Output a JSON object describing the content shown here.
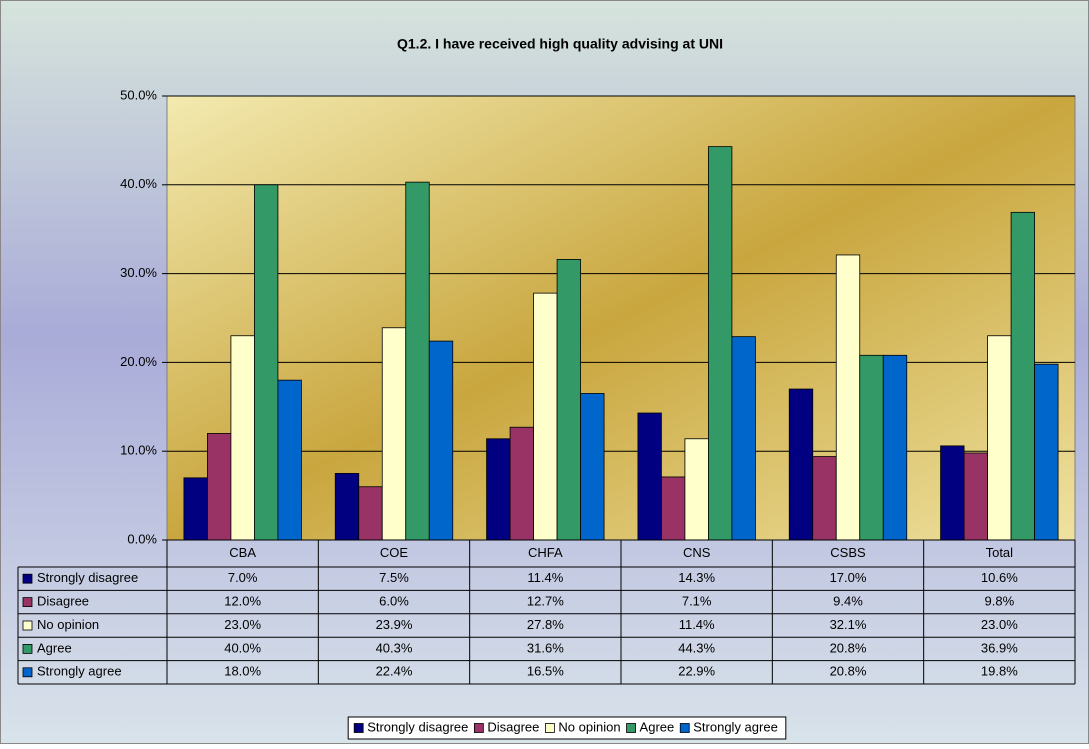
{
  "chart_data": {
    "type": "bar",
    "title": "Q1.2. I have received high quality advising at UNI",
    "categories": [
      "CBA",
      "COE",
      "CHFA",
      "CNS",
      "CSBS",
      "Total"
    ],
    "ylim": [
      0,
      50
    ],
    "yticks": [
      {
        "value": 0,
        "label": "0.0%"
      },
      {
        "value": 10,
        "label": "10.0%"
      },
      {
        "value": 20,
        "label": "20.0%"
      },
      {
        "value": 30,
        "label": "30.0%"
      },
      {
        "value": 40,
        "label": "40.0%"
      },
      {
        "value": 50,
        "label": "50.0%"
      }
    ],
    "grid": true,
    "legend": "bottom",
    "series": [
      {
        "name": "Strongly disagree",
        "color": "#000080",
        "values": [
          7.0,
          7.5,
          11.4,
          14.3,
          17.0,
          10.6
        ],
        "value_labels": [
          "7.0%",
          "7.5%",
          "11.4%",
          "14.3%",
          "17.0%",
          "10.6%"
        ]
      },
      {
        "name": "Disagree",
        "color": "#993366",
        "values": [
          12.0,
          6.0,
          12.7,
          7.1,
          9.4,
          9.8
        ],
        "value_labels": [
          "12.0%",
          "6.0%",
          "12.7%",
          "7.1%",
          "9.4%",
          "9.8%"
        ]
      },
      {
        "name": "No opinion",
        "color": "#ffffcc",
        "values": [
          23.0,
          23.9,
          27.8,
          11.4,
          32.1,
          23.0
        ],
        "value_labels": [
          "23.0%",
          "23.9%",
          "27.8%",
          "11.4%",
          "32.1%",
          "23.0%"
        ]
      },
      {
        "name": "Agree",
        "color": "#339966",
        "values": [
          40.0,
          40.3,
          31.6,
          44.3,
          20.8,
          36.9
        ],
        "value_labels": [
          "40.0%",
          "40.3%",
          "31.6%",
          "44.3%",
          "20.8%",
          "36.9%"
        ]
      },
      {
        "name": "Strongly agree",
        "color": "#0066cc",
        "values": [
          18.0,
          22.4,
          16.5,
          22.9,
          20.8,
          19.8
        ],
        "value_labels": [
          "18.0%",
          "22.4%",
          "16.5%",
          "22.9%",
          "20.8%",
          "19.8%"
        ]
      }
    ]
  }
}
